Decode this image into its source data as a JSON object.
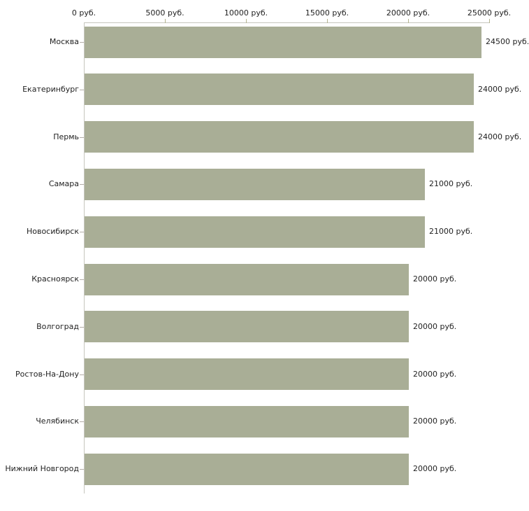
{
  "chart_data": {
    "type": "bar",
    "orientation": "horizontal",
    "title": "",
    "categories": [
      "Москва",
      "Екатеринбург",
      "Пермь",
      "Самара",
      "Новосибирск",
      "Красноярск",
      "Волгоград",
      "Ростов-На-Дону",
      "Челябинск",
      "Нижний Новгород"
    ],
    "values": [
      24500,
      24000,
      24000,
      21000,
      21000,
      20000,
      20000,
      20000,
      20000,
      20000
    ],
    "value_labels": [
      "24500 руб.",
      "24000 руб.",
      "24000 руб.",
      "21000 руб.",
      "21000 руб.",
      "20000 руб.",
      "20000 руб.",
      "20000 руб.",
      "20000 руб.",
      "20000 руб."
    ],
    "unit": "руб.",
    "x_axis": {
      "position": "top",
      "range": [
        0,
        25000
      ],
      "ticks": [
        0,
        5000,
        10000,
        15000,
        20000,
        25000
      ],
      "tick_labels": [
        "0 руб.",
        "5000 руб.",
        "10000 руб.",
        "15000 руб.",
        "20000 руб.",
        "25000 руб."
      ]
    },
    "grid": false,
    "legend": false,
    "colors": {
      "bar": "#a9ae96",
      "axis_line": "#c6c6be",
      "axis_tick": "#b4b490",
      "category_tick": "#b3ada8",
      "text": "#222222",
      "background": "#ffffff"
    }
  }
}
